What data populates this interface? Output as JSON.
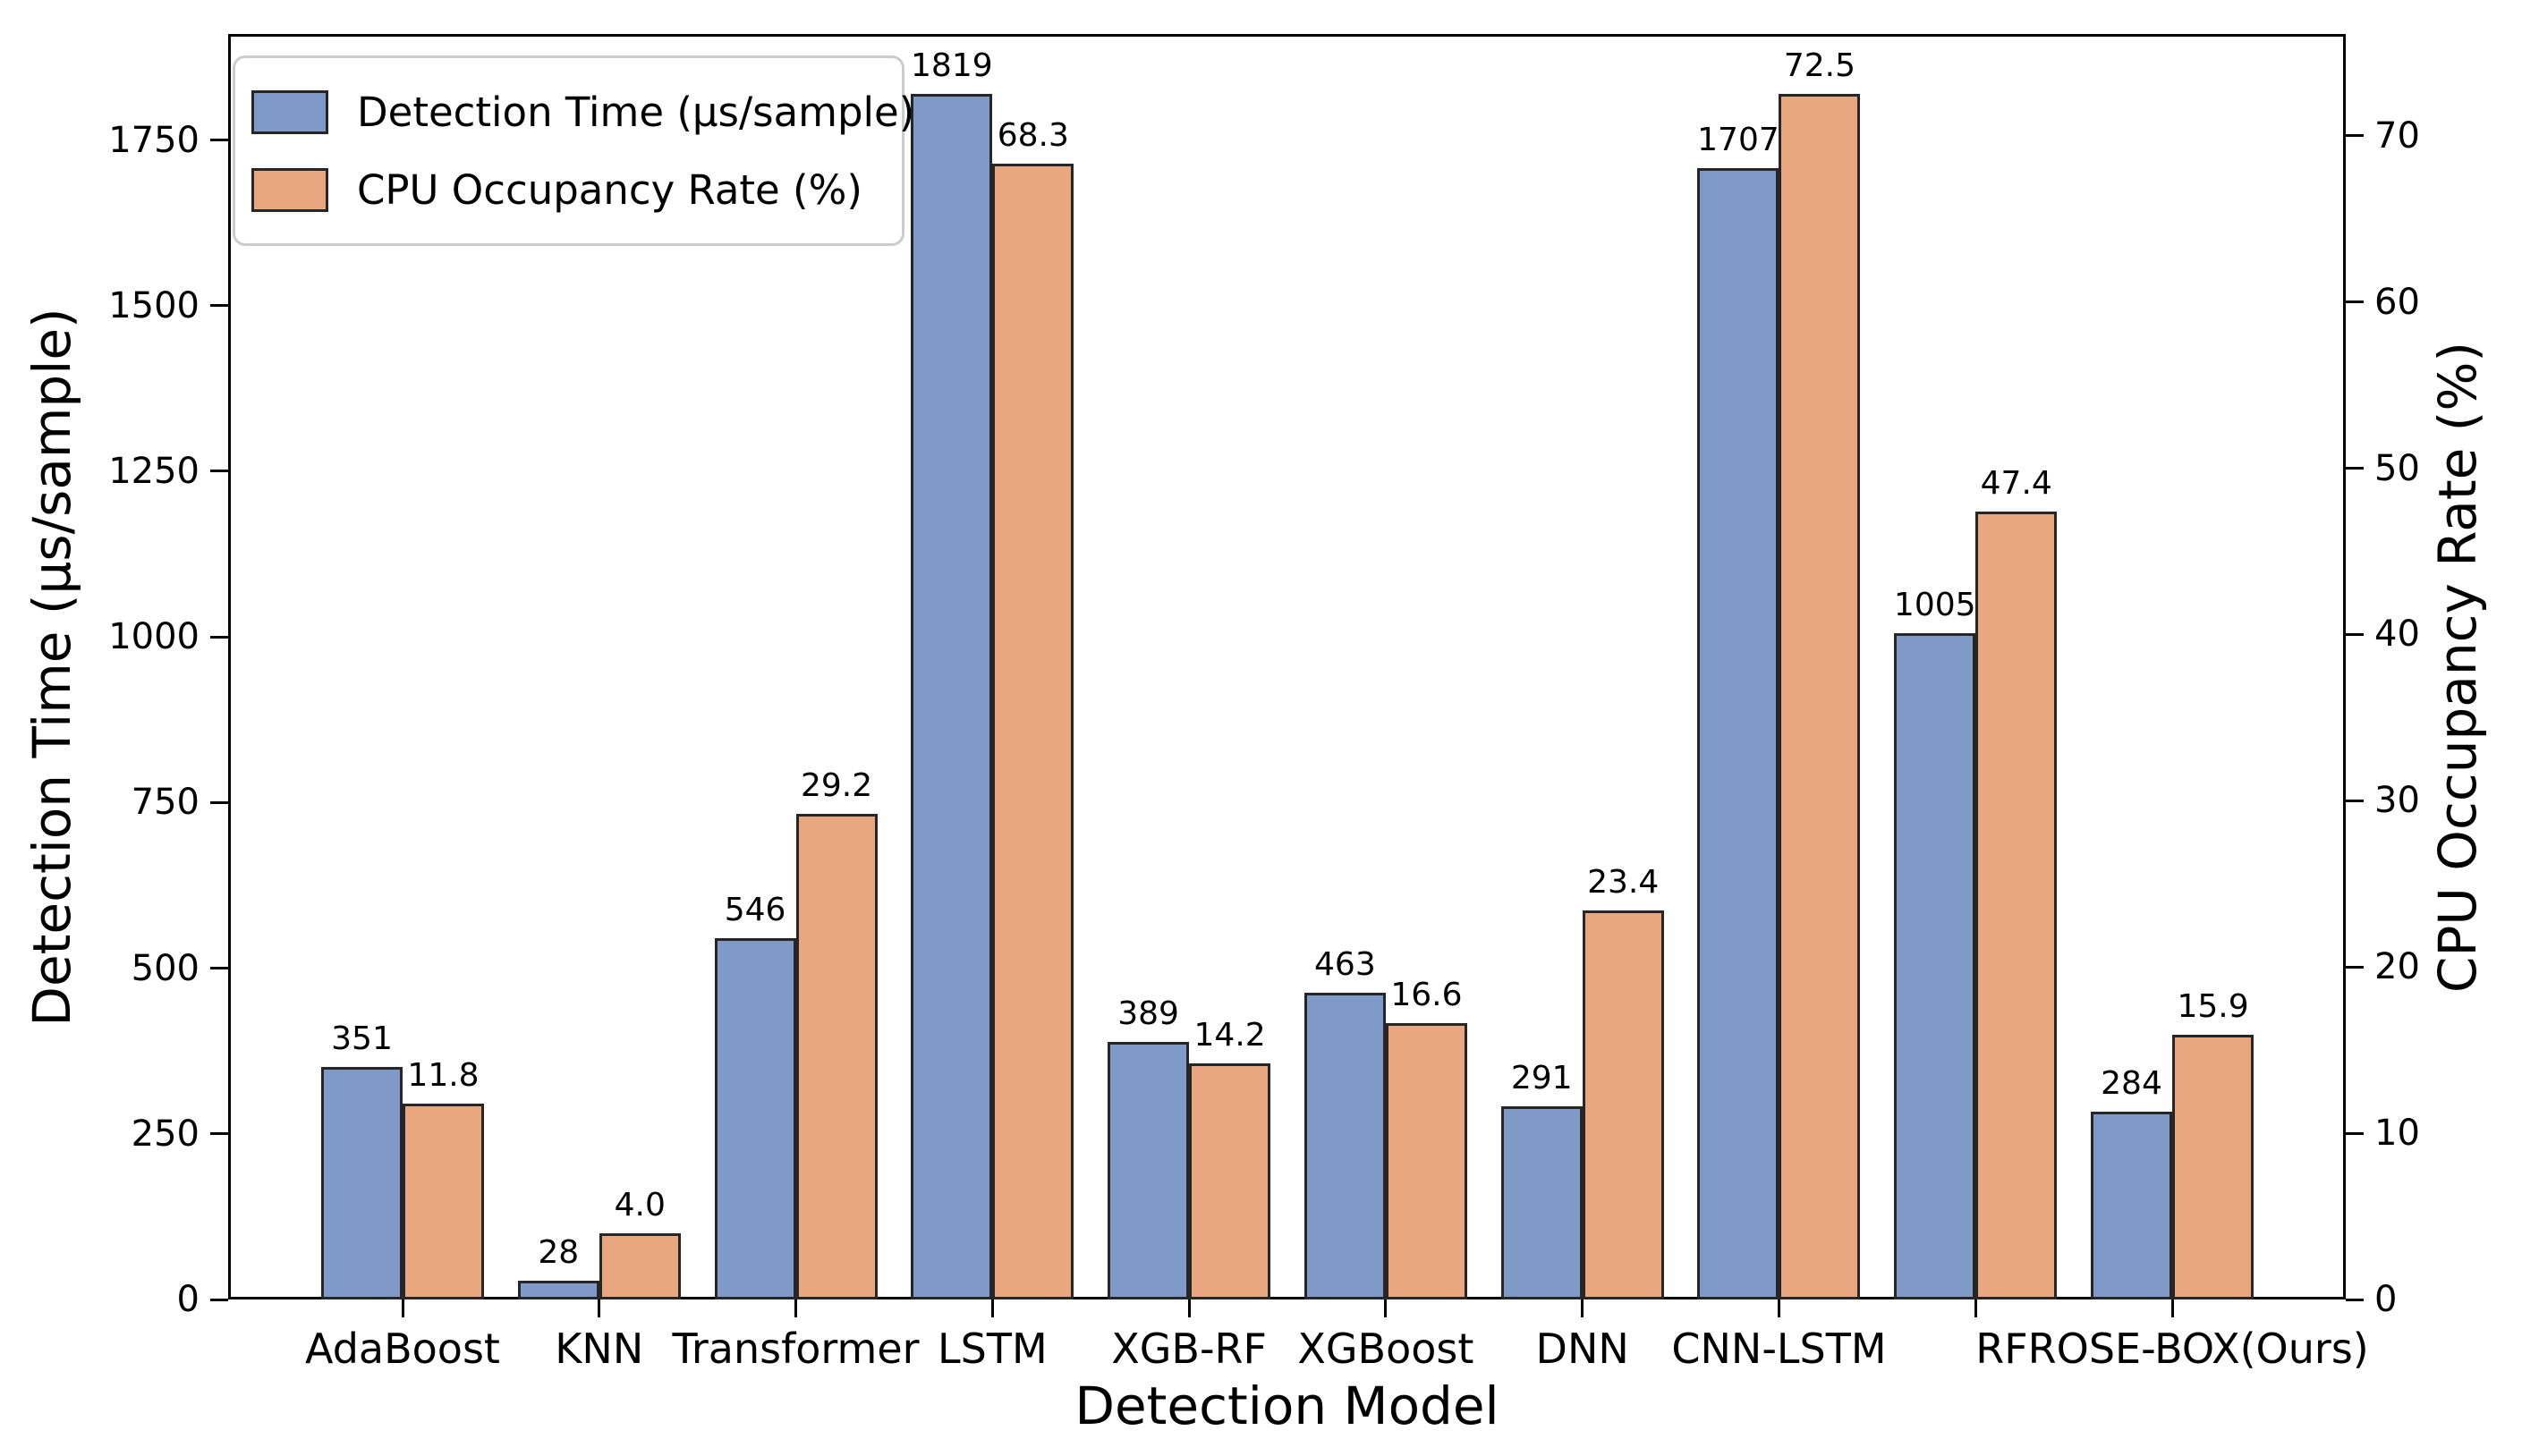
{
  "chart_data": {
    "type": "bar",
    "title": "",
    "xlabel": "Detection Model",
    "ylabel_left": "Detection Time (μs/sample)",
    "ylabel_right": "CPU Occupancy Rate (%)",
    "categories": [
      "AdaBoost",
      "KNN",
      "Transformer",
      "LSTM",
      "XGB-RF",
      "XGBoost",
      "DNN",
      "CNN-LSTM",
      "",
      "RFROSE-BOX(Ours)"
    ],
    "series": [
      {
        "name": "Detection Time (μs/sample)",
        "axis": "left",
        "color": "#809AC8",
        "values": [
          351,
          28,
          546,
          1819,
          389,
          463,
          291,
          1707,
          1005,
          284
        ],
        "labels": [
          "351",
          "28",
          "546",
          "1819",
          "389",
          "463",
          "291",
          "1707",
          "1005",
          "284"
        ]
      },
      {
        "name": "CPU Occupancy Rate (%)",
        "axis": "right",
        "color": "#E9A77F",
        "values": [
          11.8,
          4.0,
          29.2,
          68.3,
          14.2,
          16.6,
          23.4,
          72.5,
          47.4,
          15.9
        ],
        "labels": [
          "11.8",
          "4.0",
          "29.2",
          "68.3",
          "14.2",
          "16.6",
          "23.4",
          "72.5",
          "47.4",
          "15.9"
        ]
      }
    ],
    "yticks_left": [
      "0",
      "250",
      "500",
      "750",
      "1000",
      "1250",
      "1500",
      "1750"
    ],
    "yticks_right": [
      "0",
      "10",
      "20",
      "30",
      "40",
      "50",
      "60",
      "70"
    ],
    "ylim_left": [
      0,
      1910
    ],
    "ylim_right": [
      0,
      76.125
    ],
    "grid": false,
    "legend_position": "upper left",
    "bar_edge_color": "#262626",
    "spine_color": "#000000",
    "background_color": "#ffffff"
  }
}
